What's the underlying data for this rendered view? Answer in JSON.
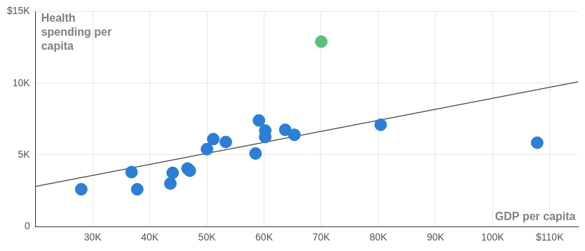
{
  "chart_data": {
    "type": "scatter",
    "x_label": "GDP per capita",
    "y_label": "Health spending per capita",
    "series": [
      {
        "type": "scatter",
        "marker": "circle",
        "x": [
          28000,
          36800,
          37800,
          43600,
          44000,
          46600,
          47000,
          50000,
          51100,
          53300,
          58500,
          59100,
          60200,
          60200,
          63700,
          65300,
          70000,
          80400,
          107800
        ],
        "values": [
          2600,
          3800,
          2600,
          3000,
          3750,
          4050,
          3900,
          5400,
          6100,
          5900,
          5100,
          7400,
          6700,
          6250,
          6750,
          6400,
          12900,
          7100,
          5850
        ],
        "colors": [
          "#2b7fd4",
          "#2b7fd4",
          "#2b7fd4",
          "#2b7fd4",
          "#2b7fd4",
          "#2b7fd4",
          "#2b7fd4",
          "#2b7fd4",
          "#2b7fd4",
          "#2b7fd4",
          "#2b7fd4",
          "#2b7fd4",
          "#2b7fd4",
          "#2b7fd4",
          "#2b7fd4",
          "#2b7fd4",
          "#5cc07a",
          "#2b7fd4",
          "#2b7fd4"
        ]
      },
      {
        "type": "line",
        "line_style": "solid",
        "color": "#444444",
        "x": [
          20000,
          115000
        ],
        "values": [
          2800,
          10100
        ]
      }
    ],
    "xlim": [
      20000,
      115000
    ],
    "xticks": [
      {
        "value": 30000,
        "label": "30K"
      },
      {
        "value": 40000,
        "label": "40K"
      },
      {
        "value": 50000,
        "label": "50K"
      },
      {
        "value": 60000,
        "label": "60K"
      },
      {
        "value": 70000,
        "label": "70K"
      },
      {
        "value": 80000,
        "label": "80K"
      },
      {
        "value": 90000,
        "label": "90K"
      },
      {
        "value": 100000,
        "label": "100K"
      },
      {
        "value": 110000,
        "label": "$110K"
      }
    ],
    "ylim": [
      0,
      15000
    ],
    "yticks": [
      0,
      {
        "value": 5000,
        "label": "5K"
      },
      {
        "value": 10000,
        "label": "10K"
      },
      {
        "value": 15000,
        "label": "$15K"
      }
    ],
    "grid": true
  }
}
